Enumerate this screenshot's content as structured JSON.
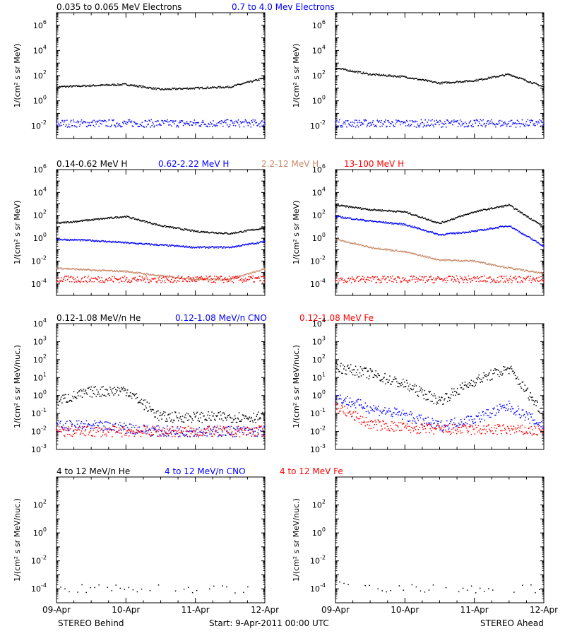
{
  "colors": {
    "black": "#000000",
    "blue": "#0000ff",
    "tan": "#c88866",
    "red": "#ff0000"
  },
  "x_ticks": [
    "09-Apr",
    "10-Apr",
    "11-Apr",
    "12-Apr"
  ],
  "footer": {
    "left": "STEREO Behind",
    "center": "Start:  9-Apr-2011 00:00 UTC",
    "right": "STEREO Ahead"
  },
  "chart_data": [
    {
      "type": "scatter",
      "row": 1,
      "legend": [
        {
          "text": "0.035 to 0.065 MeV Electrons",
          "color": "black"
        },
        {
          "text": "0.7 to 4.0 Mev Electrons",
          "color": "blue"
        }
      ],
      "ylabel": "1/(cm² s sr MeV)",
      "y_log_range": [
        -3,
        7
      ],
      "y_ticks": [
        -2,
        0,
        2,
        4,
        6
      ],
      "x": [
        0,
        0.5,
        1,
        1.5,
        2,
        2.5,
        3
      ],
      "panels": [
        {
          "name": "STEREO Behind",
          "series": [
            {
              "color": "black",
              "log_values": [
                1.1,
                1.2,
                1.3,
                0.9,
                1.0,
                1.1,
                1.8
              ]
            },
            {
              "color": "blue",
              "log_values": [
                -1.8,
                -1.8,
                -1.8,
                -1.8,
                -1.8,
                -1.8,
                -1.8
              ],
              "scatter": true
            }
          ]
        },
        {
          "name": "STEREO Ahead",
          "series": [
            {
              "color": "black",
              "log_values": [
                2.6,
                2.1,
                1.9,
                1.4,
                1.6,
                2.1,
                1.1
              ]
            },
            {
              "color": "blue",
              "log_values": [
                -1.8,
                -1.8,
                -1.8,
                -1.8,
                -1.8,
                -1.8,
                -1.8
              ],
              "scatter": true
            }
          ]
        }
      ]
    },
    {
      "type": "scatter",
      "row": 2,
      "legend": [
        {
          "text": "0.14-0.62 MeV H",
          "color": "black"
        },
        {
          "text": "0.62-2.22 MeV H",
          "color": "blue"
        },
        {
          "text": "2.2-12 MeV H",
          "color": "tan"
        },
        {
          "text": "13-100 MeV H",
          "color": "red"
        }
      ],
      "ylabel": "1/(cm² s sr MeV)",
      "y_log_range": [
        -5,
        6
      ],
      "y_ticks": [
        -4,
        -2,
        0,
        2,
        4,
        6
      ],
      "x": [
        0,
        0.5,
        1,
        1.5,
        2,
        2.5,
        3
      ],
      "panels": [
        {
          "name": "STEREO Behind",
          "series": [
            {
              "color": "black",
              "log_values": [
                1.3,
                1.6,
                1.9,
                1.1,
                0.6,
                0.4,
                0.9
              ]
            },
            {
              "color": "blue",
              "log_values": [
                -0.1,
                -0.2,
                -0.4,
                -0.6,
                -0.8,
                -0.8,
                -0.3
              ]
            },
            {
              "color": "tan",
              "log_values": [
                -2.6,
                -2.8,
                -2.9,
                -3.3,
                -3.6,
                -3.6,
                -2.7
              ]
            },
            {
              "color": "red",
              "log_values": [
                -3.6,
                -3.6,
                -3.6,
                -3.6,
                -3.6,
                -3.6,
                -3.6
              ],
              "scatter": true
            }
          ]
        },
        {
          "name": "STEREO Ahead",
          "series": [
            {
              "color": "black",
              "log_values": [
                2.9,
                2.5,
                2.3,
                1.3,
                2.3,
                2.9,
                1.0
              ]
            },
            {
              "color": "blue",
              "log_values": [
                1.9,
                1.5,
                1.2,
                0.3,
                0.6,
                1.1,
                -0.7
              ]
            },
            {
              "color": "tan",
              "log_values": [
                -0.1,
                -0.8,
                -1.2,
                -1.9,
                -2.0,
                -2.6,
                -3.1
              ]
            },
            {
              "color": "red",
              "log_values": [
                -3.6,
                -3.6,
                -3.6,
                -3.6,
                -3.6,
                -3.6,
                -3.6
              ],
              "scatter": true
            }
          ]
        }
      ]
    },
    {
      "type": "scatter",
      "row": 3,
      "legend": [
        {
          "text": "0.12-1.08 MeV/n He",
          "color": "black"
        },
        {
          "text": "0.12-1.08 MeV/n CNO",
          "color": "blue"
        },
        {
          "text": "0.12-1.08 MeV Fe",
          "color": "red"
        }
      ],
      "ylabel": "1/(cm² s sr MeV/nuc.)",
      "y_log_range": [
        -3,
        4
      ],
      "y_ticks": [
        -3,
        -2,
        -1,
        0,
        1,
        2,
        3,
        4
      ],
      "x": [
        0,
        0.5,
        1,
        1.5,
        2,
        2.5,
        3
      ],
      "panels": [
        {
          "name": "STEREO Behind",
          "series": [
            {
              "color": "black",
              "log_values": [
                -0.3,
                0.2,
                0.3,
                -1.2,
                -1.2,
                -1.2,
                -1.2
              ],
              "scatter": true
            },
            {
              "color": "blue",
              "log_values": [
                -1.7,
                -1.7,
                -1.8,
                -2.0,
                -2.0,
                -2.0,
                -2.0
              ],
              "scatter": true
            },
            {
              "color": "red",
              "log_values": [
                -2.0,
                -2.0,
                -2.0,
                -2.0,
                -2.0,
                -2.0,
                -2.0
              ],
              "scatter": true
            }
          ]
        },
        {
          "name": "STEREO Ahead",
          "series": [
            {
              "color": "black",
              "log_values": [
                1.6,
                1.2,
                0.6,
                -0.3,
                0.8,
                1.5,
                -1.0
              ],
              "scatter": true
            },
            {
              "color": "blue",
              "log_values": [
                -0.1,
                -0.7,
                -1.1,
                -1.7,
                -1.3,
                -0.6,
                -1.7
              ],
              "scatter": true
            },
            {
              "color": "red",
              "log_values": [
                -0.6,
                -1.6,
                -1.8,
                -1.9,
                -1.9,
                -1.9,
                -2.0
              ],
              "scatter": true
            }
          ]
        }
      ]
    },
    {
      "type": "scatter",
      "row": 4,
      "legend": [
        {
          "text": "4 to 12 MeV/n He",
          "color": "black"
        },
        {
          "text": "4 to 12 MeV/n CNO",
          "color": "blue"
        },
        {
          "text": "4 to 12 MeV Fe",
          "color": "red"
        }
      ],
      "ylabel": "1/(cm² s sr MeV/nuc.)",
      "y_log_range": [
        -5,
        4
      ],
      "y_ticks": [
        -4,
        -2,
        0,
        2
      ],
      "x": [
        0,
        0.5,
        1,
        1.5,
        2,
        2.5,
        3
      ],
      "panels": [
        {
          "name": "STEREO Behind",
          "series": [
            {
              "color": "black",
              "log_values": [
                -4.0,
                -4.0,
                -4.0,
                -4.0,
                -4.0,
                -4.0,
                -4.0
              ],
              "scatter": true,
              "sparse": true
            }
          ]
        },
        {
          "name": "STEREO Ahead",
          "series": [
            {
              "color": "black",
              "log_values": [
                -3.7,
                -3.9,
                -4.0,
                -4.0,
                -4.0,
                -4.0,
                -4.0
              ],
              "scatter": true,
              "sparse": true
            }
          ]
        }
      ]
    }
  ]
}
